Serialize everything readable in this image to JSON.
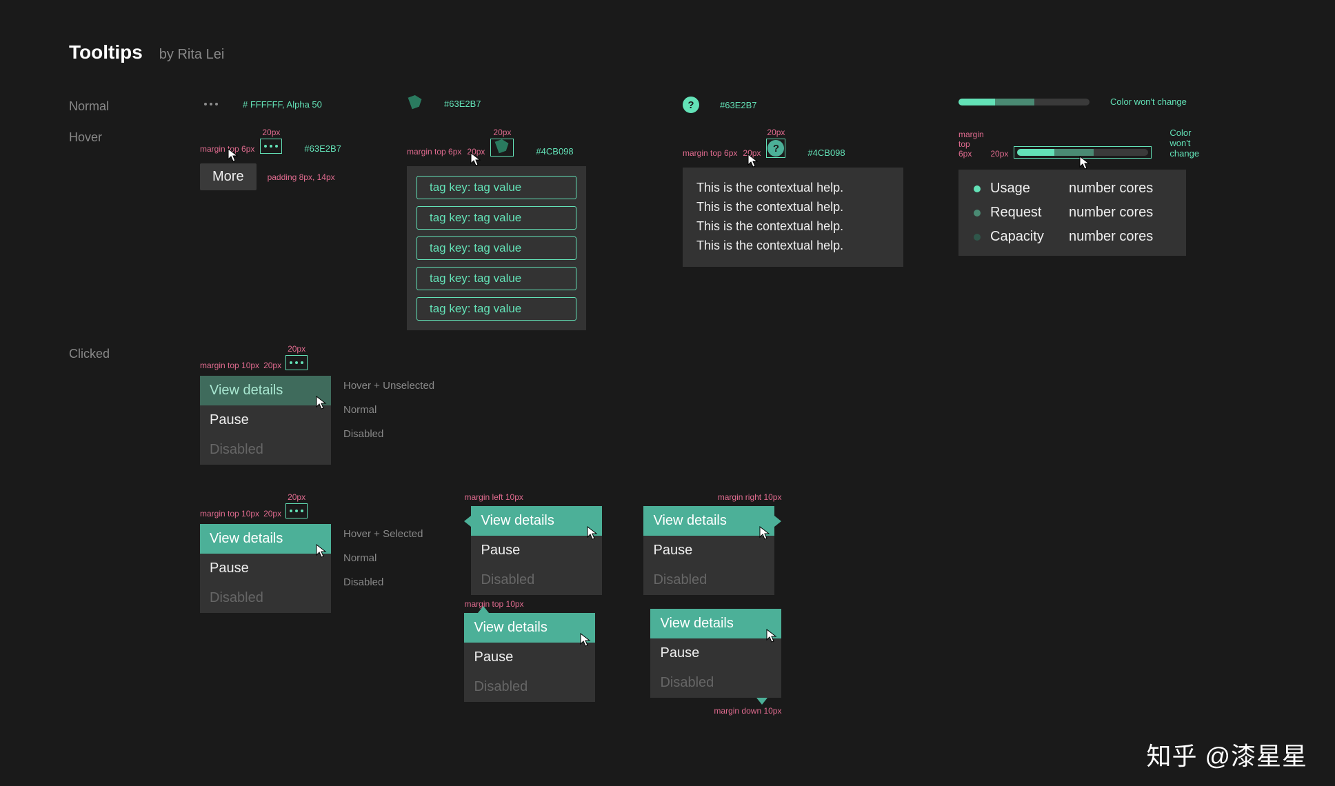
{
  "header": {
    "title": "Tooltips",
    "author": "by Rita Lei"
  },
  "rows": {
    "normal": "Normal",
    "hover": "Hover",
    "clicked": "Clicked"
  },
  "colors": {
    "teal": "#63E2B7",
    "teal_dark": "#4CB098",
    "white_half": "# FFFFFF, Alpha 50",
    "bg_panel": "#333333",
    "no_change": "Color won't change"
  },
  "specs": {
    "px20": "20px",
    "margin_top_6": "margin top 6px",
    "margin_top_10": "margin top 10px",
    "margin_left_10": "margin left 10px",
    "margin_right_10": "margin right 10px",
    "margin_down_10": "margin down 10px",
    "padding": "padding 8px, 14px"
  },
  "tooltip_more": "More",
  "tag_pill": "tag key: tag value",
  "tag_count": 5,
  "ctx_line": "This is the contextual help.",
  "ctx_count": 4,
  "legend": [
    {
      "dot": "#63e2b7",
      "label": "Usage",
      "value": "number cores"
    },
    {
      "dot": "#4a8a73",
      "label": "Request",
      "value": "number cores"
    },
    {
      "dot": "#2f564a",
      "label": "Capacity",
      "value": "number cores"
    }
  ],
  "progress_segments": [
    {
      "w": 28,
      "c": "#63e2b7"
    },
    {
      "w": 30,
      "c": "#4a8a73"
    }
  ],
  "menu": {
    "view": "View details",
    "pause": "Pause",
    "disabled": "Disabled"
  },
  "menu_states": {
    "hover_unsel": "Hover + Unselected",
    "normal": "Normal",
    "disabled": "Disabled",
    "hover_sel": "Hover + Selected"
  },
  "watermark": "知乎 @漆星星"
}
